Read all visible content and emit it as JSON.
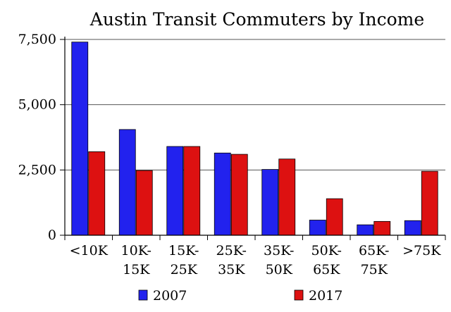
{
  "chart_data": {
    "type": "bar",
    "title": "Austin Transit Commuters by Income",
    "xlabel": "",
    "ylabel": "",
    "ylim": [
      0,
      7500
    ],
    "yticks": [
      {
        "value": 0,
        "label": "0"
      },
      {
        "value": 2500,
        "label": "2,500"
      },
      {
        "value": 5000,
        "label": "5,000"
      },
      {
        "value": 7500,
        "label": "7,500"
      }
    ],
    "categories": [
      [
        "<10K"
      ],
      [
        "10K-",
        "15K"
      ],
      [
        "15K-",
        "25K"
      ],
      [
        "25K-",
        "35K"
      ],
      [
        "35K-",
        "50K"
      ],
      [
        "50K-",
        "65K"
      ],
      [
        "65K-",
        "75K"
      ],
      [
        ">75K"
      ]
    ],
    "series": [
      {
        "name": "2007",
        "color": "#2222ee",
        "values": [
          7400,
          4050,
          3400,
          3150,
          2520,
          580,
          400,
          560
        ]
      },
      {
        "name": "2017",
        "color": "#dd1111",
        "values": [
          3200,
          2480,
          3400,
          3100,
          2920,
          1400,
          530,
          2450
        ]
      }
    ],
    "grid": true,
    "legend": "bottom"
  }
}
